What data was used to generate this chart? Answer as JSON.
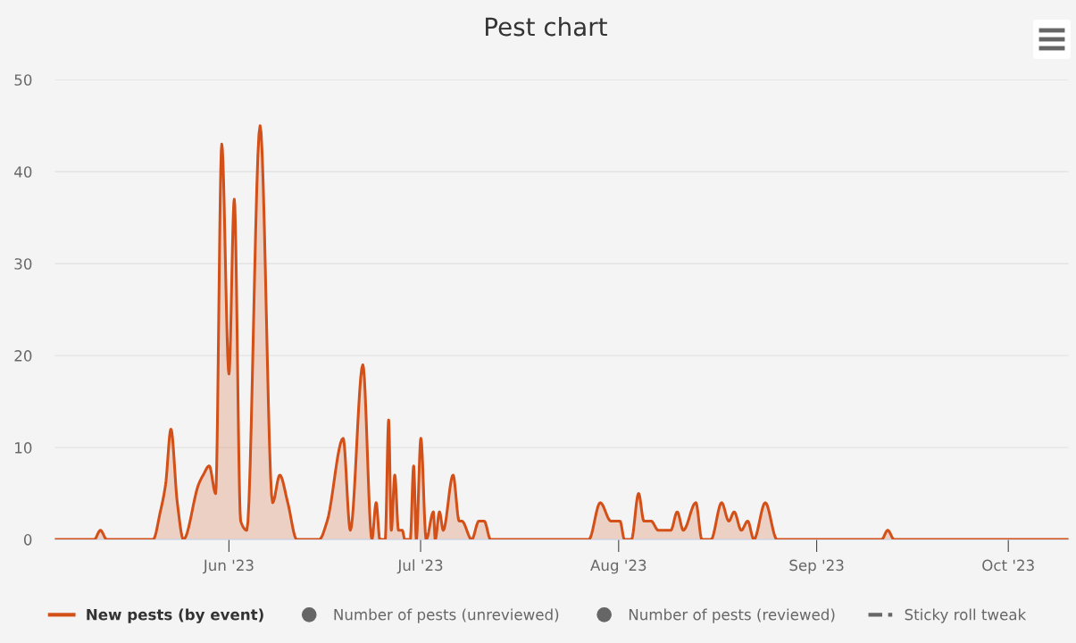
{
  "chart_data": {
    "type": "area",
    "title": "Pest chart",
    "x": [
      "2023-05-04T18:00",
      "2023-05-10T22:00",
      "2023-05-11T21:00",
      "2023-05-12T21:00",
      "2023-05-20T03:00",
      "2023-05-21T06:00",
      "2023-05-22T02:00",
      "2023-05-22T22:00",
      "2023-05-23T22:00",
      "2023-05-24T21:00",
      "2023-05-27T06:00",
      "2023-05-27T23:00",
      "2023-05-28T22:00",
      "2023-05-29T22:00",
      "2023-05-30T21:00",
      "2023-06-01T00:00",
      "2023-06-01T20:00",
      "2023-06-02T20:00",
      "2023-06-03T19:00",
      "2023-06-05T21:00",
      "2023-06-07T20:00",
      "2023-06-08T23:00",
      "2023-06-10T05:00",
      "2023-06-11T15:00",
      "2023-06-15T03:00",
      "2023-06-16T09:00",
      "2023-06-18T21:00",
      "2023-06-20T00:00",
      "2023-06-21T23:00",
      "2023-06-23T09:00",
      "2023-06-24T01:00",
      "2023-06-24T15:00",
      "2023-06-25T11:00",
      "2023-06-26T00:00",
      "2023-06-26T10:00",
      "2023-06-26T23:00",
      "2023-06-27T13:00",
      "2023-06-28T03:00",
      "2023-06-28T13:00",
      "2023-06-29T09:00",
      "2023-06-29T22:00",
      "2023-06-30T08:00",
      "2023-07-01T01:00",
      "2023-07-01T21:00",
      "2023-07-03T00:00",
      "2023-07-03T07:00",
      "2023-07-03T23:00",
      "2023-07-04T13:00",
      "2023-07-06T02:00",
      "2023-07-07T01:00",
      "2023-07-07T11:00",
      "2023-07-09T00:00",
      "2023-07-10T03:00",
      "2023-07-10T23:00",
      "2023-07-11T23:00",
      "2023-07-27T08:00",
      "2023-07-29T03:00",
      "2023-07-30T19:00",
      "2023-08-01T05:00",
      "2023-08-01T22:00",
      "2023-08-03T00:00",
      "2023-08-04T03:00",
      "2023-08-04T23:00",
      "2023-08-06T02:00",
      "2023-08-07T05:00",
      "2023-08-09T04:00",
      "2023-08-10T04:00",
      "2023-08-11T03:00",
      "2023-08-13T02:00",
      "2023-08-14T01:00",
      "2023-08-15T11:00",
      "2023-08-17T03:00",
      "2023-08-18T06:00",
      "2023-08-19T02:00",
      "2023-08-20T05:00",
      "2023-08-21T05:00",
      "2023-08-22T04:00",
      "2023-08-23T23:00",
      "2023-08-25T19:00",
      "2023-09-11T04:00",
      "2023-09-12T03:00",
      "2023-09-13T03:00",
      "2023-10-10T10:00"
    ],
    "series": [
      {
        "name": "New pests (by event)",
        "color": "#d35018",
        "values": [
          0,
          0,
          1,
          0,
          0,
          3,
          6,
          12,
          4,
          0,
          6,
          7,
          8,
          5,
          43,
          18,
          37,
          2,
          1,
          45,
          4,
          7,
          4,
          0,
          0,
          2,
          11,
          1,
          19,
          0,
          4,
          0,
          0,
          13,
          1,
          7,
          1,
          1,
          0,
          0,
          8,
          0,
          11,
          0,
          3,
          0,
          3,
          1,
          7,
          2,
          2,
          0,
          2,
          2,
          0,
          0,
          4,
          2,
          2,
          0,
          0,
          5,
          2,
          2,
          1,
          1,
          3,
          1,
          4,
          0,
          0,
          4,
          2,
          3,
          1,
          2,
          0,
          4,
          0,
          0,
          1,
          0,
          0
        ]
      },
      {
        "name": "Number of pests (unreviewed)",
        "type": "scatter",
        "marker": "circle",
        "color": "#666666",
        "values": [
          null,
          null,
          null,
          null,
          null,
          null,
          null,
          null,
          null,
          null,
          null,
          null,
          null,
          null,
          null,
          null,
          null,
          null,
          null,
          null,
          null,
          null,
          null,
          null,
          null,
          null,
          null,
          null,
          null,
          null,
          null,
          null,
          null,
          null,
          null,
          null,
          null,
          null,
          null,
          null,
          null,
          null,
          null,
          null,
          null,
          null,
          null,
          null,
          null,
          null,
          null,
          null,
          null,
          null,
          null,
          null,
          null,
          null,
          null,
          null,
          null,
          null,
          null,
          null,
          null,
          null,
          null,
          null,
          null,
          null,
          null,
          null,
          null,
          null,
          null,
          null,
          null,
          null,
          null,
          null,
          null,
          null,
          null
        ]
      },
      {
        "name": "Number of pests (reviewed)",
        "type": "scatter",
        "marker": "circle",
        "color": "#666666",
        "values": [
          null,
          null,
          null,
          null,
          null,
          null,
          null,
          null,
          null,
          null,
          null,
          null,
          null,
          null,
          null,
          null,
          null,
          null,
          null,
          null,
          null,
          null,
          null,
          null,
          null,
          null,
          null,
          null,
          null,
          null,
          null,
          null,
          null,
          null,
          null,
          null,
          null,
          null,
          null,
          null,
          null,
          null,
          null,
          null,
          null,
          null,
          null,
          null,
          null,
          null,
          null,
          null,
          null,
          null,
          null,
          null,
          null,
          null,
          null,
          null,
          null,
          null,
          null,
          null,
          null,
          null,
          null,
          null,
          null,
          null,
          null,
          null,
          null,
          null,
          null,
          null,
          null,
          null,
          null,
          null,
          null,
          null,
          null
        ]
      },
      {
        "name": "Sticky roll tweak",
        "type": "line",
        "line_style": "dashed",
        "color": "#666666",
        "values": [
          null,
          null,
          null,
          null,
          null,
          null,
          null,
          null,
          null,
          null,
          null,
          null,
          null,
          null,
          null,
          null,
          null,
          null,
          null,
          null,
          null,
          null,
          null,
          null,
          null,
          null,
          null,
          null,
          null,
          null,
          null,
          null,
          null,
          null,
          null,
          null,
          null,
          null,
          null,
          null,
          null,
          null,
          null,
          null,
          null,
          null,
          null,
          null,
          null,
          null,
          null,
          null,
          null,
          null,
          null,
          null,
          null,
          null,
          null,
          null,
          null,
          null,
          null,
          null,
          null,
          null,
          null,
          null,
          null,
          null,
          null,
          null,
          null,
          null,
          null,
          null,
          null,
          null,
          null,
          null,
          null,
          null,
          null
        ]
      }
    ],
    "xlim": [
      "2023-05-04T18:00",
      "2023-10-10T10:00"
    ],
    "xticks": [
      {
        "value": "2023-06-01",
        "label": "Jun '23"
      },
      {
        "value": "2023-07-01",
        "label": "Jul '23"
      },
      {
        "value": "2023-08-01",
        "label": "Aug '23"
      },
      {
        "value": "2023-09-01",
        "label": "Sep '23"
      },
      {
        "value": "2023-10-01",
        "label": "Oct '23"
      }
    ],
    "ylim": [
      0,
      50
    ],
    "yticks": [
      0,
      10,
      20,
      30,
      40,
      50
    ],
    "grid": "y",
    "legend": "bottom"
  }
}
